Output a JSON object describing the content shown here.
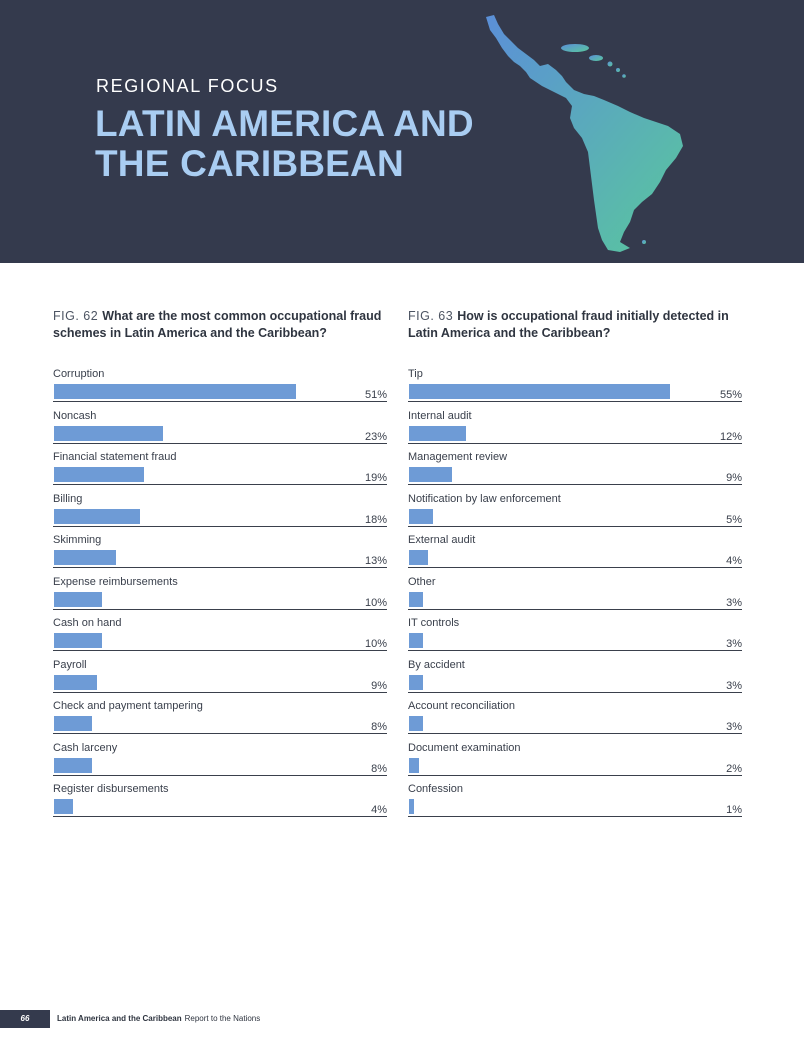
{
  "header": {
    "kicker": "REGIONAL FOCUS",
    "title_line1": "LATIN AMERICA AND",
    "title_line2": "THE CARIBBEAN",
    "background_color": "#343a4d",
    "title_color": "#a9cdf2",
    "map_gradient": [
      "#5b8fd8",
      "#59c79d"
    ]
  },
  "chart_data": [
    {
      "type": "bar",
      "orientation": "horizontal",
      "fig_label": "FIG. 62",
      "title": "What are the most common occupational fraud schemes in Latin America and the Caribbean?",
      "categories": [
        "Corruption",
        "Noncash",
        "Financial statement fraud",
        "Billing",
        "Skimming",
        "Expense reimbursements",
        "Cash on hand",
        "Payroll",
        "Check and payment tampering",
        "Cash larceny",
        "Register disbursements"
      ],
      "values": [
        51,
        23,
        19,
        18,
        13,
        10,
        10,
        9,
        8,
        8,
        4
      ],
      "value_labels": [
        "51%",
        "23%",
        "19%",
        "18%",
        "13%",
        "10%",
        "10%",
        "9%",
        "8%",
        "8%",
        "4%"
      ],
      "xlim": [
        0,
        60
      ],
      "bar_color": "#6e9bd6"
    },
    {
      "type": "bar",
      "orientation": "horizontal",
      "fig_label": "FIG. 63",
      "title": "How is occupational fraud initially detected in Latin America and the Caribbean?",
      "categories": [
        "Tip",
        "Internal audit",
        "Management review",
        "Notification by law enforcement",
        "External audit",
        "Other",
        "IT controls",
        "By accident",
        "Account reconciliation",
        "Document examination",
        "Confession"
      ],
      "values": [
        55,
        12,
        9,
        5,
        4,
        3,
        3,
        3,
        3,
        2,
        1
      ],
      "value_labels": [
        "55%",
        "12%",
        "9%",
        "5%",
        "4%",
        "3%",
        "3%",
        "3%",
        "3%",
        "2%",
        "1%"
      ],
      "xlim": [
        0,
        60
      ],
      "bar_color": "#6e9bd6"
    }
  ],
  "footer": {
    "page_number": "66",
    "section": "Latin America and the Caribbean",
    "publication": "Report to the Nations"
  }
}
